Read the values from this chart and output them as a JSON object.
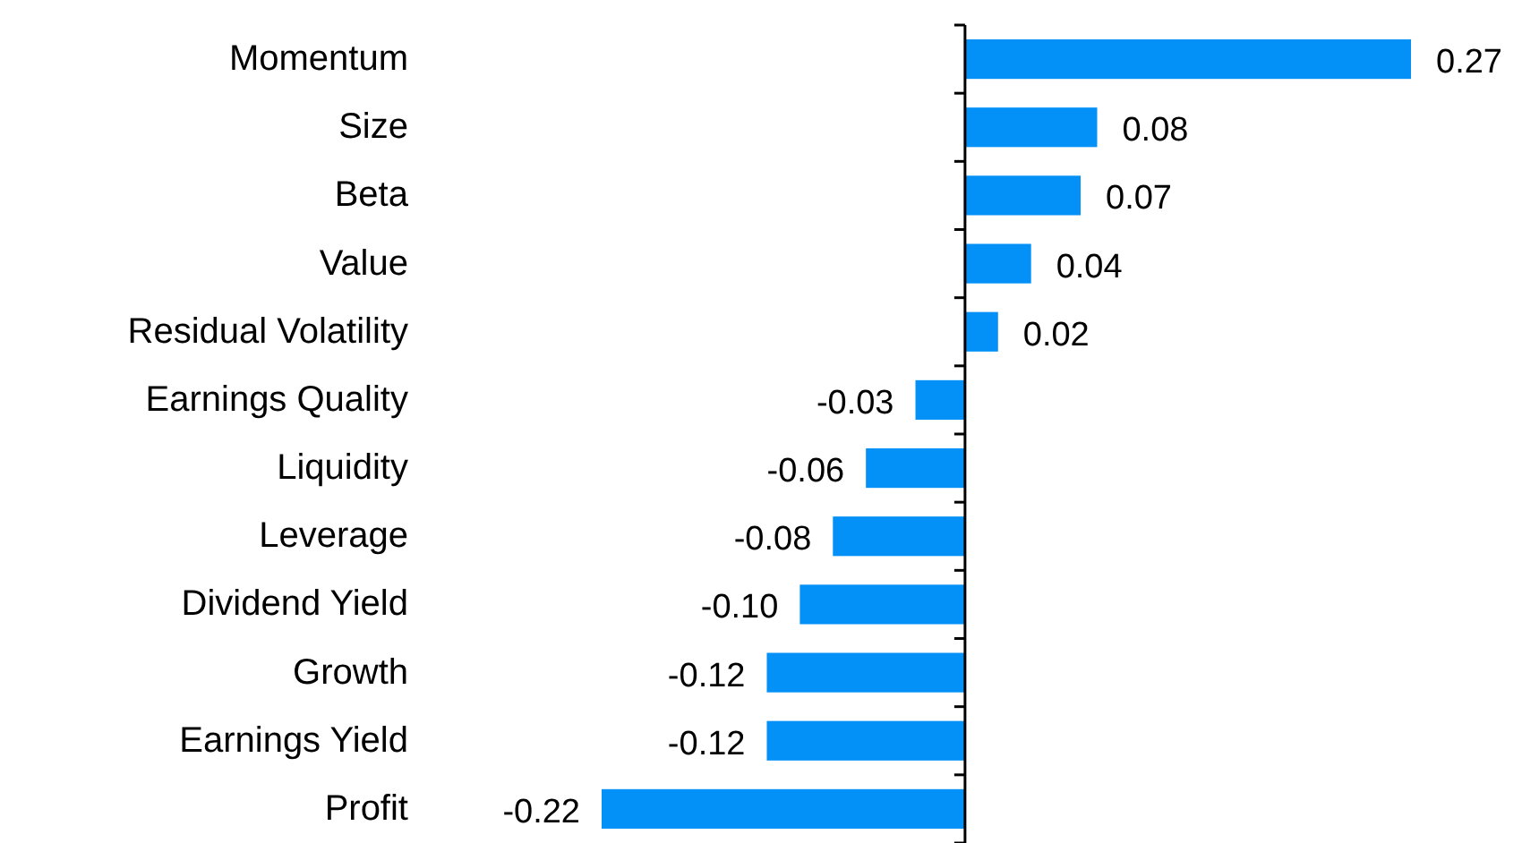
{
  "chart_data": {
    "type": "bar",
    "orientation": "horizontal",
    "categories": [
      "Momentum",
      "Size",
      "Beta",
      "Value",
      "Residual Volatility",
      "Earnings Quality",
      "Liquidity",
      "Leverage",
      "Dividend Yield",
      "Growth",
      "Earnings Yield",
      "Profit"
    ],
    "values": [
      0.27,
      0.08,
      0.07,
      0.04,
      0.02,
      -0.03,
      -0.06,
      -0.08,
      -0.1,
      -0.12,
      -0.12,
      -0.22
    ],
    "value_labels": [
      "0.27",
      "0.08",
      "0.07",
      "0.04",
      "0.02",
      "-0.03",
      "-0.06",
      "-0.08",
      "-0.10",
      "-0.12",
      "-0.12",
      "-0.22"
    ],
    "color": "#0391f7"
  }
}
